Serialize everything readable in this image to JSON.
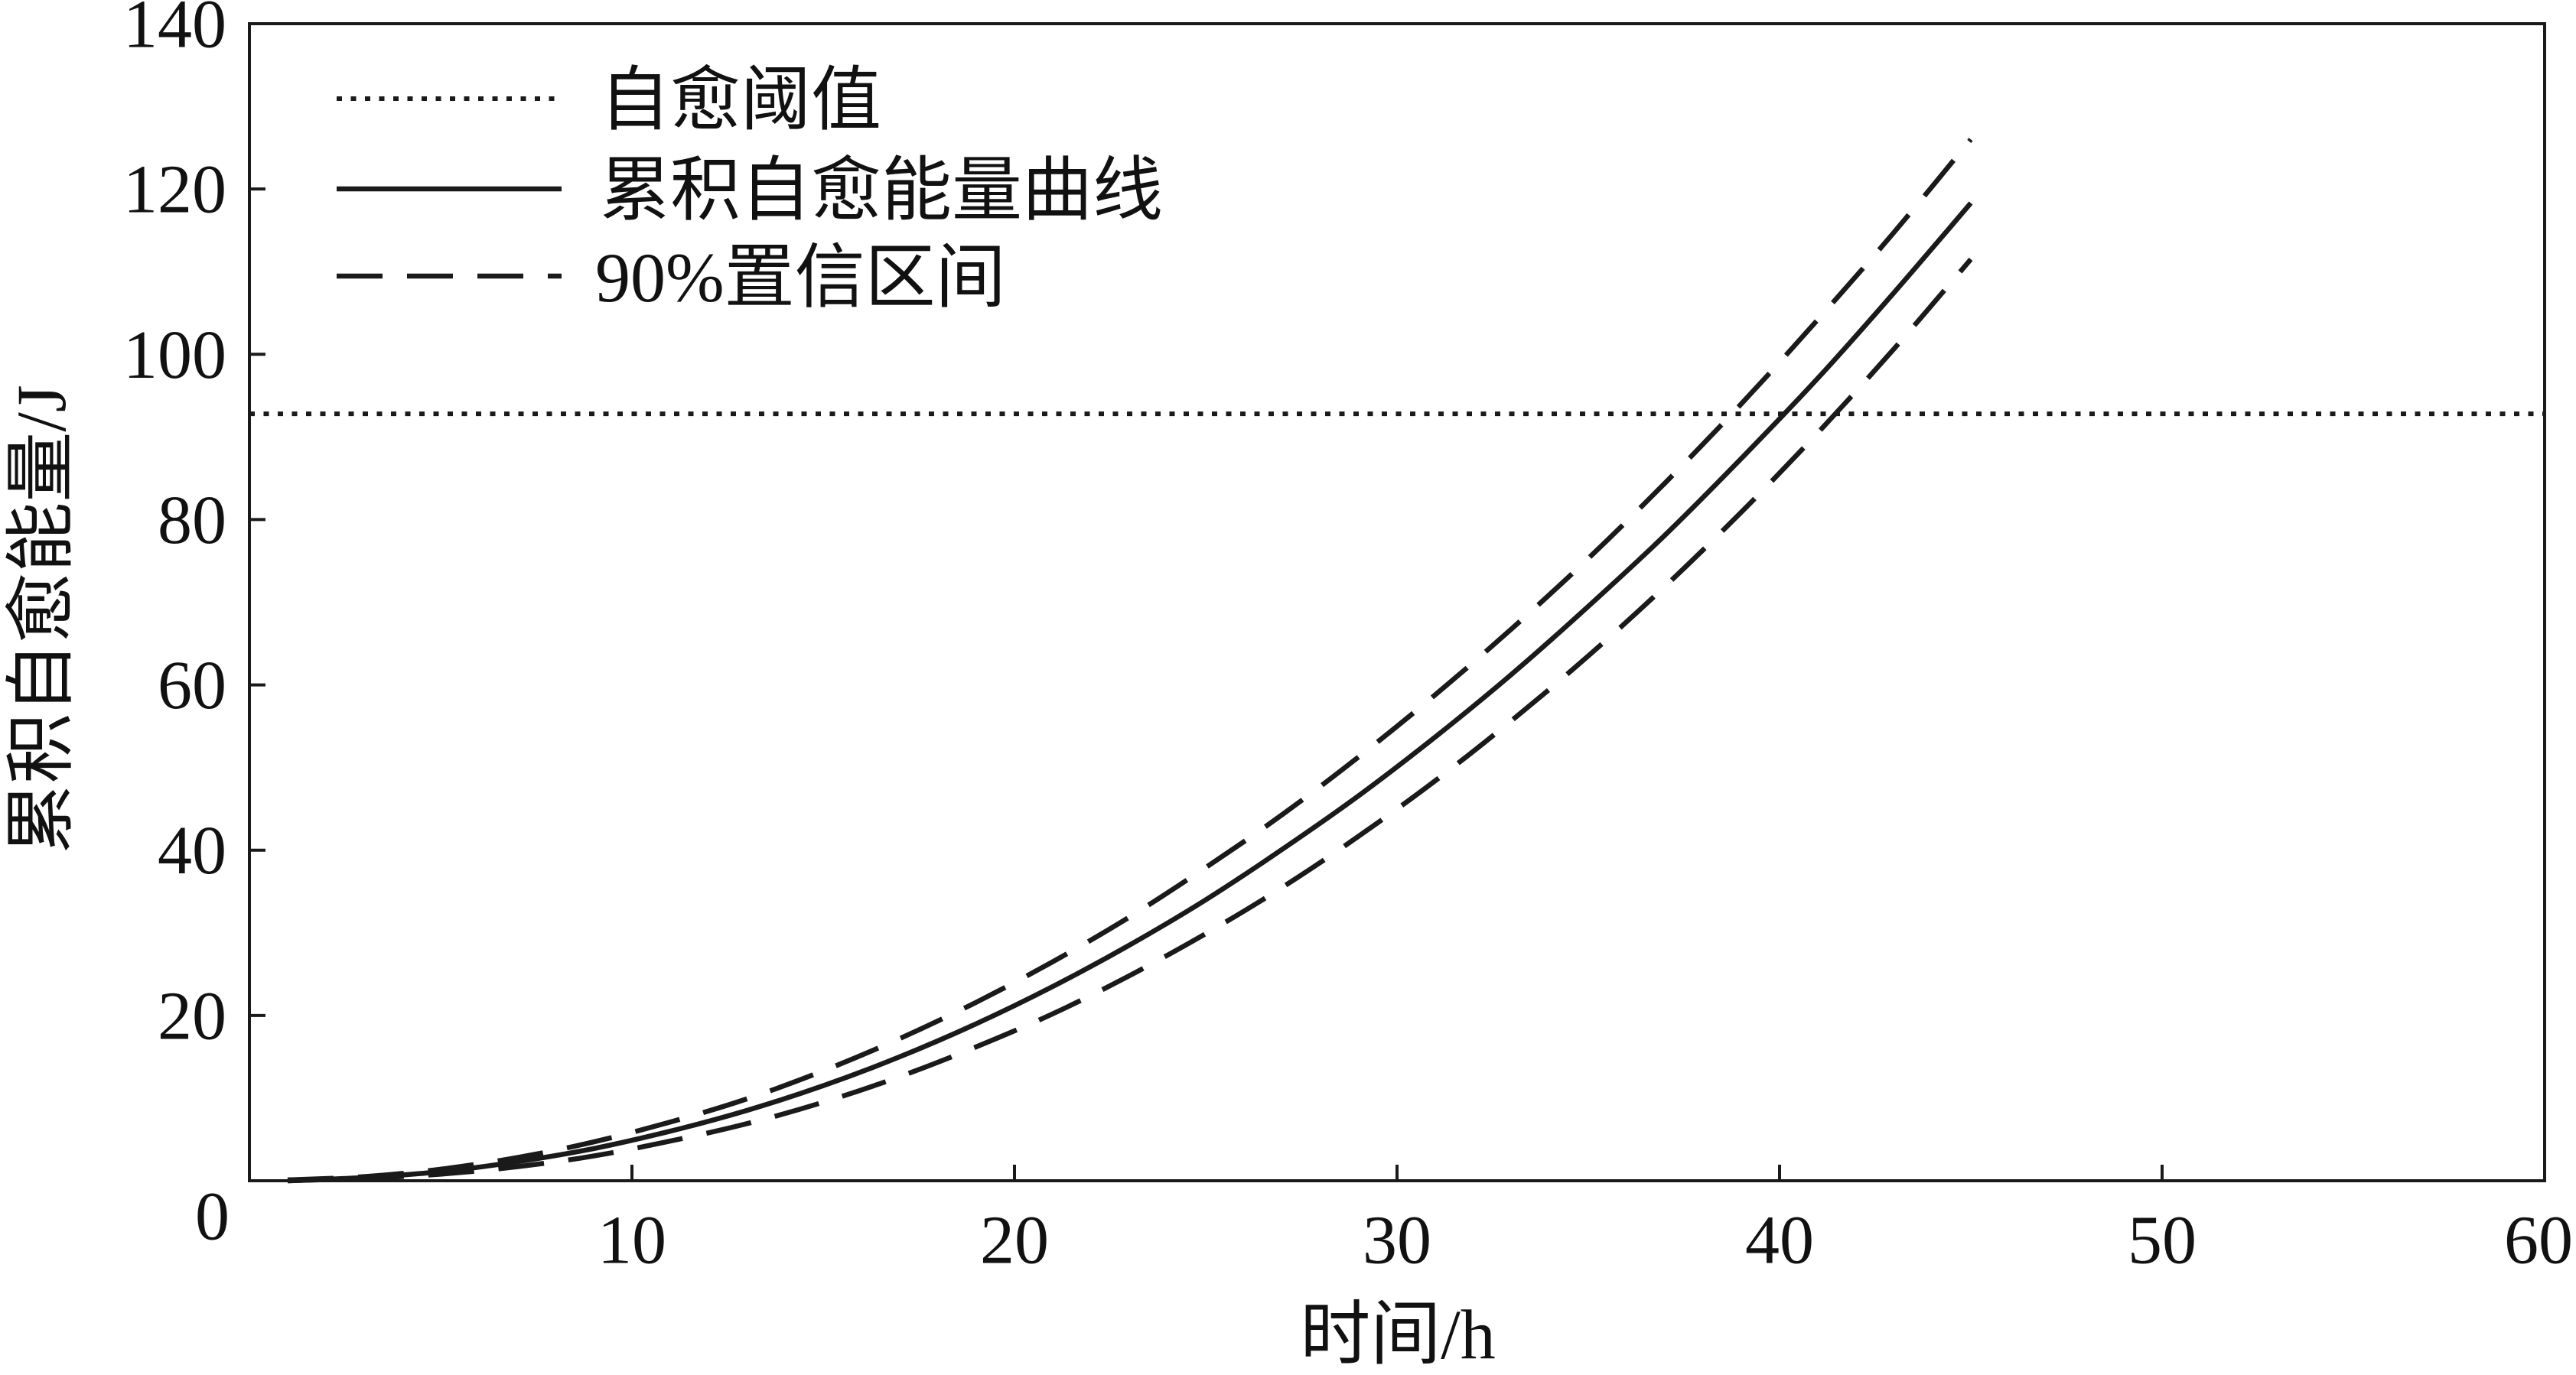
{
  "chart_data": {
    "type": "line",
    "xlabel": "时间/h",
    "ylabel": "累积自愈能量/J",
    "xlim": [
      0,
      60
    ],
    "ylim": [
      0,
      140
    ],
    "xticks": [
      10,
      20,
      30,
      40,
      50,
      60
    ],
    "yticks": [
      0,
      20,
      40,
      60,
      80,
      100,
      120,
      140
    ],
    "grid": false,
    "legend": "top-left",
    "line_color": "#1a1a1a",
    "x": [
      1,
      3,
      5,
      7,
      9,
      11,
      13,
      15,
      17,
      19,
      21,
      23,
      25,
      27,
      29,
      31,
      33,
      35,
      37,
      39,
      41,
      43,
      45
    ],
    "series": [
      {
        "name": "累积自愈能量曲线",
        "values": [
          0.0,
          0.4,
          1.1,
          2.3,
          3.9,
          6.0,
          8.5,
          11.5,
          15.0,
          19.0,
          23.5,
          28.5,
          34.0,
          40.1,
          46.6,
          53.7,
          61.3,
          69.5,
          78.1,
          87.4,
          97.1,
          107.5,
          118.3
        ]
      }
    ],
    "band": {
      "name": "90%置信区间",
      "upper": [
        0.1,
        0.5,
        1.4,
        2.8,
        4.7,
        7.1,
        9.9,
        13.3,
        17.2,
        21.6,
        26.5,
        31.9,
        37.9,
        44.3,
        51.3,
        58.8,
        66.8,
        75.3,
        84.4,
        94.0,
        104.2,
        114.8,
        126.0
      ],
      "lower": [
        0.0,
        0.3,
        0.8,
        1.7,
        3.0,
        4.8,
        6.9,
        9.5,
        12.6,
        16.2,
        20.2,
        24.8,
        29.9,
        35.5,
        41.7,
        48.4,
        55.7,
        63.5,
        71.9,
        80.9,
        90.5,
        100.7,
        111.5
      ]
    },
    "threshold": {
      "name": "自愈阈值",
      "value": 92.8
    }
  }
}
